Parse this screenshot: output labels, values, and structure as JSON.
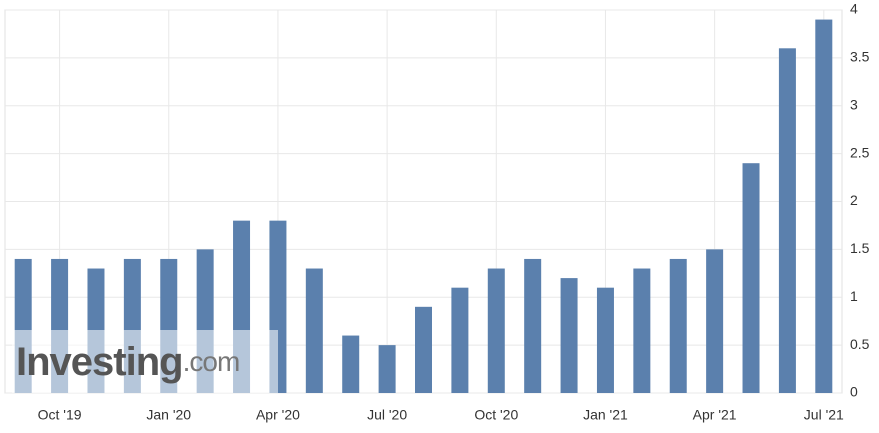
{
  "chart_data": {
    "type": "bar",
    "categories": [
      null,
      "Oct '19",
      null,
      null,
      "Jan '20",
      null,
      null,
      "Apr '20",
      null,
      null,
      "Jul '20",
      null,
      null,
      "Oct '20",
      null,
      null,
      "Jan '21",
      null,
      null,
      "Apr '21",
      null,
      null,
      "Jul '21"
    ],
    "values": [
      1.4,
      1.4,
      1.3,
      1.4,
      1.4,
      1.5,
      1.8,
      1.8,
      1.3,
      0.6,
      0.5,
      0.9,
      1.1,
      1.3,
      1.4,
      1.2,
      1.1,
      1.3,
      1.4,
      1.5,
      2.4,
      3.6,
      3.9
    ],
    "color": "#5b80ad",
    "ylim": [
      0,
      4
    ],
    "yticks": [
      0,
      0.5,
      1,
      1.5,
      2,
      2.5,
      3,
      3.5,
      4
    ],
    "grid": true,
    "watermark": {
      "brand": "Investing",
      "suffix": ".com"
    }
  }
}
